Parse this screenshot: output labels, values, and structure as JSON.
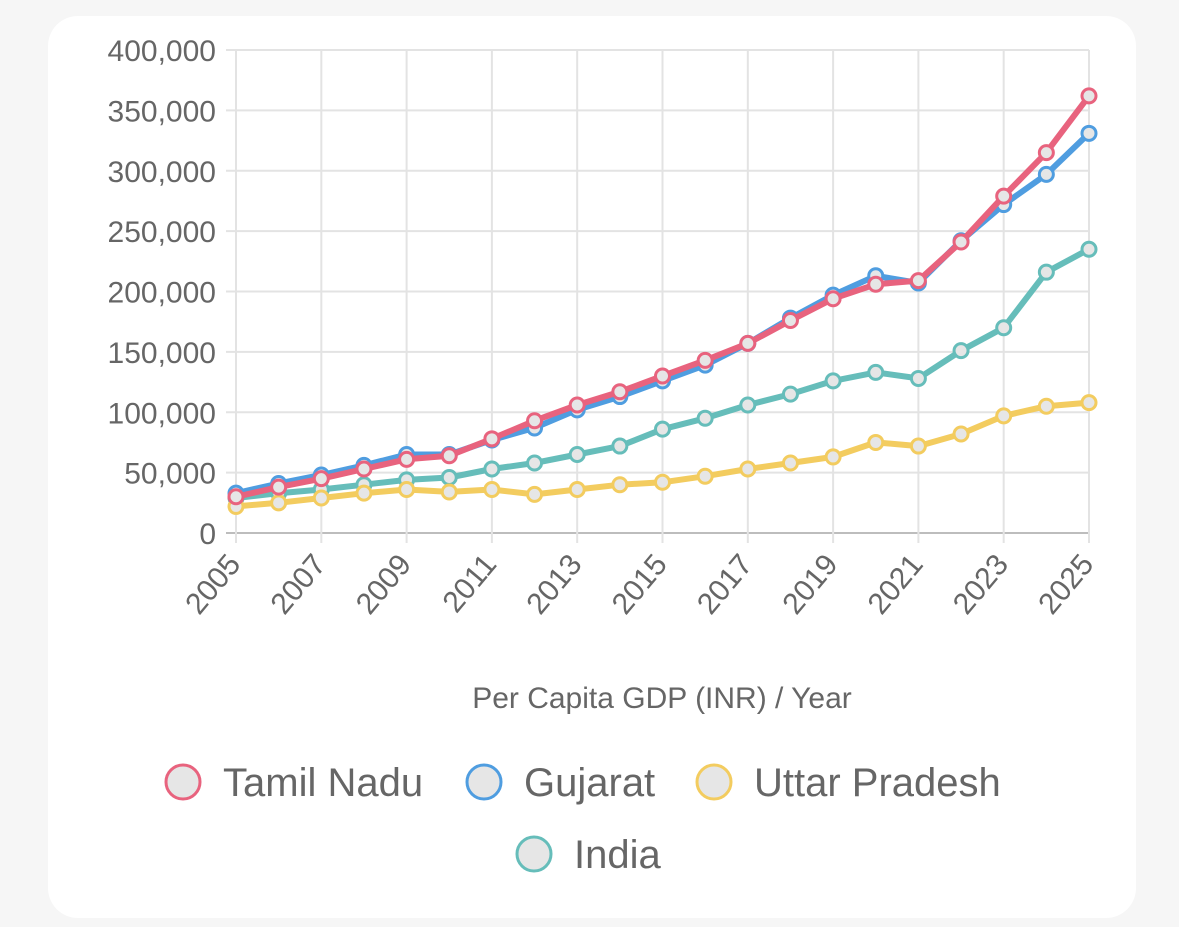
{
  "chart_data": {
    "type": "line",
    "title": "",
    "xlabel": "Per Capita GDP (INR) / Year",
    "ylabel": "",
    "ylim": [
      0,
      400000
    ],
    "y_ticks": [
      0,
      50000,
      100000,
      150000,
      200000,
      250000,
      300000,
      350000,
      400000
    ],
    "y_tick_labels": [
      "0",
      "50,000",
      "100,000",
      "150,000",
      "200,000",
      "250,000",
      "300,000",
      "350,000",
      "400,000"
    ],
    "x": [
      2005,
      2006,
      2007,
      2008,
      2009,
      2010,
      2011,
      2012,
      2013,
      2014,
      2015,
      2016,
      2017,
      2018,
      2019,
      2020,
      2021,
      2022,
      2023,
      2024,
      2025
    ],
    "x_tick_labels": [
      "2005",
      "2007",
      "2009",
      "2011",
      "2013",
      "2015",
      "2017",
      "2019",
      "2021",
      "2023",
      "2025"
    ],
    "grid": true,
    "legend_position": "bottom",
    "series": [
      {
        "name": "Tamil Nadu",
        "color": "#e8637e",
        "values": [
          30000,
          38000,
          45000,
          53000,
          61000,
          64000,
          78000,
          93000,
          106000,
          117000,
          130000,
          143000,
          157000,
          176000,
          194000,
          206000,
          209000,
          241000,
          279000,
          315000,
          362000
        ]
      },
      {
        "name": "Gujarat",
        "color": "#4f9de0",
        "values": [
          33000,
          41000,
          48000,
          56000,
          65000,
          65000,
          77000,
          87000,
          102000,
          113000,
          126000,
          139000,
          157000,
          178000,
          197000,
          213000,
          207000,
          242000,
          272000,
          297000,
          331000
        ]
      },
      {
        "name": "Uttar Pradesh",
        "color": "#f3cc5f",
        "values": [
          22000,
          25000,
          29000,
          33000,
          36000,
          34000,
          36000,
          32000,
          36000,
          40000,
          42000,
          47000,
          53000,
          58000,
          63000,
          75000,
          72000,
          82000,
          97000,
          105000,
          108000
        ]
      },
      {
        "name": "India",
        "color": "#66bdba",
        "values": [
          29000,
          33000,
          36000,
          40000,
          44000,
          46000,
          53000,
          58000,
          65000,
          72000,
          86000,
          95000,
          106000,
          115000,
          126000,
          133000,
          128000,
          151000,
          170000,
          216000,
          235000
        ]
      }
    ]
  }
}
